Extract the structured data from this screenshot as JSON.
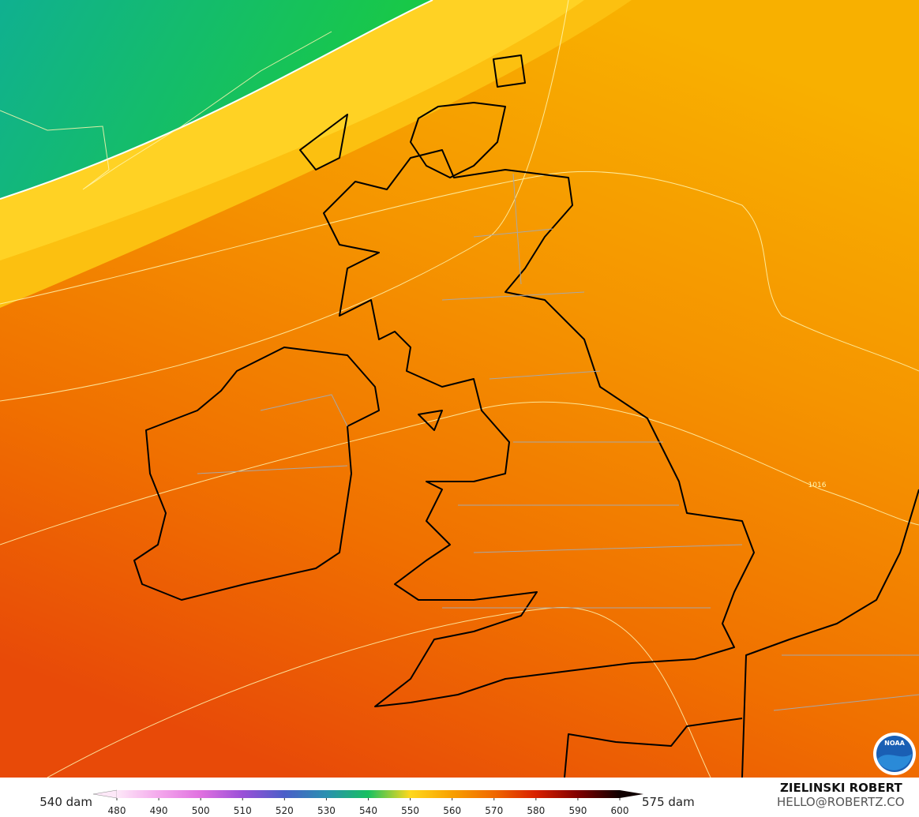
{
  "legend": {
    "min_label": "540 dam",
    "max_label": "575 dam",
    "ticks": [
      480,
      490,
      500,
      510,
      520,
      530,
      540,
      550,
      560,
      570,
      580,
      590,
      600
    ],
    "colors": [
      "#fde8f8",
      "#f4a8ec",
      "#e070e0",
      "#9a50d8",
      "#4a5ec8",
      "#2a90b0",
      "#18c060",
      "#ffd81c",
      "#f8a000",
      "#f06800",
      "#d82000",
      "#800000",
      "#100000"
    ]
  },
  "map": {
    "contour_label": "1016"
  },
  "logo": {
    "text": "NOAA"
  },
  "credits": {
    "name": "ZIELINSKI ROBERT",
    "email": "HELLO@ROBERTZ.CO"
  }
}
